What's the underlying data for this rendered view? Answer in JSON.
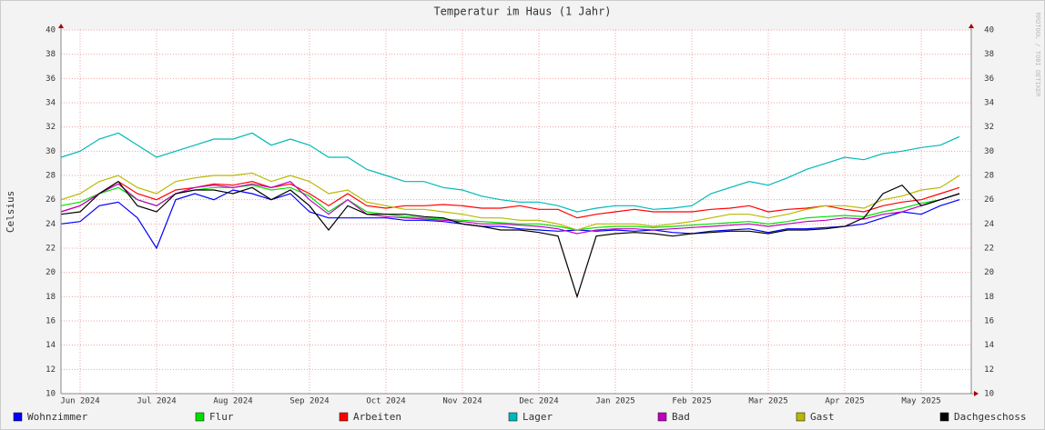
{
  "chart_data": {
    "type": "line",
    "title": "Temperatur im Haus (1 Jahr)",
    "y_label": "Celsius",
    "watermark": "RRDTOOL / TOBI OETIKER",
    "categories": [
      null,
      "Jun 2024",
      null,
      null,
      null,
      "Jul 2024",
      null,
      null,
      null,
      "Aug 2024",
      null,
      null,
      null,
      "Sep 2024",
      null,
      null,
      null,
      "Oct 2024",
      null,
      null,
      null,
      "Nov 2024",
      null,
      null,
      null,
      "Dec 2024",
      null,
      null,
      null,
      "Jan 2025",
      null,
      null,
      null,
      "Feb 2025",
      null,
      null,
      null,
      "Mar 2025",
      null,
      null,
      null,
      "Apr 2025",
      null,
      null,
      null,
      "May 2025",
      null,
      null
    ],
    "ylim": [
      10,
      40
    ],
    "yticks": [
      10,
      12,
      14,
      16,
      18,
      20,
      22,
      24,
      26,
      28,
      30,
      32,
      34,
      36,
      38,
      40
    ],
    "grid": true,
    "legend": "bottom",
    "series": [
      {
        "name": "Wohnzimmer",
        "color": "#0000ff",
        "values": [
          24,
          24.2,
          25.5,
          25.8,
          24.5,
          22,
          26,
          26.5,
          26,
          26.8,
          26.5,
          26,
          26.5,
          25,
          24.5,
          24.5,
          24.5,
          24.5,
          24.3,
          24.3,
          24.2,
          24,
          23.8,
          23.8,
          23.6,
          23.5,
          23.4,
          23.5,
          23.4,
          23.5,
          23.4,
          23.5,
          23.3,
          23.2,
          23.4,
          23.5,
          23.6,
          23.3,
          23.6,
          23.6,
          23.7,
          23.8,
          24,
          24.5,
          25,
          24.8,
          25.5,
          26
        ]
      },
      {
        "name": "Flur",
        "color": "#00e000",
        "values": [
          25.5,
          25.8,
          26.5,
          27,
          26,
          25.5,
          26.5,
          26.8,
          27,
          27,
          27.2,
          26.8,
          27,
          26.3,
          25,
          26,
          25,
          24.8,
          24.6,
          24.5,
          24.4,
          24.3,
          24.2,
          24.1,
          24,
          24,
          23.8,
          23.5,
          23.7,
          23.8,
          23.8,
          23.7,
          23.8,
          23.9,
          24,
          24.1,
          24.2,
          24,
          24.2,
          24.5,
          24.6,
          24.7,
          24.6,
          25,
          25.3,
          25.7,
          26,
          26.5
        ]
      },
      {
        "name": "Arbeiten",
        "color": "#ff0000",
        "values": [
          25,
          25.5,
          26.5,
          27.5,
          26.5,
          26,
          26.8,
          27,
          27.3,
          27.2,
          27.5,
          27,
          27.3,
          26.5,
          25.5,
          26.5,
          25.5,
          25.3,
          25.5,
          25.5,
          25.6,
          25.5,
          25.3,
          25.3,
          25.5,
          25.2,
          25.2,
          24.5,
          24.8,
          25,
          25.2,
          25,
          25,
          25,
          25.2,
          25.3,
          25.5,
          25,
          25.2,
          25.3,
          25.5,
          25.2,
          25,
          25.5,
          25.8,
          26,
          26.5,
          27
        ]
      },
      {
        "name": "Lager",
        "color": "#00b8b8",
        "values": [
          29.5,
          30,
          31,
          31.5,
          30.5,
          29.5,
          30,
          30.5,
          31,
          31,
          31.5,
          30.5,
          31,
          30.5,
          29.5,
          29.5,
          28.5,
          28,
          27.5,
          27.5,
          27,
          26.8,
          26.3,
          26,
          25.8,
          25.8,
          25.5,
          25,
          25.3,
          25.5,
          25.5,
          25.2,
          25.3,
          25.5,
          26.5,
          27,
          27.5,
          27.2,
          27.8,
          28.5,
          29,
          29.5,
          29.3,
          29.8,
          30,
          30.3,
          30.5,
          31.2
        ]
      },
      {
        "name": "Bad",
        "color": "#c000c0",
        "values": [
          25,
          25.5,
          26.5,
          27.3,
          26,
          25.5,
          26.5,
          27,
          27.2,
          27,
          27.3,
          27,
          27.5,
          26,
          24.8,
          26,
          24.8,
          24.6,
          24.5,
          24.4,
          24.3,
          24.2,
          24,
          24,
          23.9,
          23.8,
          23.6,
          23.2,
          23.5,
          23.6,
          23.6,
          23.5,
          23.6,
          23.7,
          23.8,
          23.9,
          24,
          23.8,
          24,
          24.2,
          24.3,
          24.5,
          24.4,
          24.8,
          25,
          25.5,
          26,
          26.5
        ]
      },
      {
        "name": "Gast",
        "color": "#b8b800",
        "values": [
          26,
          26.5,
          27.5,
          28,
          27,
          26.5,
          27.5,
          27.8,
          28,
          28,
          28.2,
          27.5,
          28,
          27.5,
          26.5,
          26.8,
          25.8,
          25.5,
          25.2,
          25.2,
          25,
          24.8,
          24.5,
          24.5,
          24.3,
          24.3,
          24,
          23.5,
          24,
          24,
          24,
          23.8,
          24,
          24.2,
          24.5,
          24.8,
          24.8,
          24.5,
          24.8,
          25.2,
          25.5,
          25.5,
          25.3,
          26,
          26.3,
          26.8,
          27,
          28
        ]
      },
      {
        "name": "Dachgeschoss",
        "color": "#000000",
        "values": [
          24.8,
          25,
          26.5,
          27.5,
          25.5,
          25,
          26.5,
          26.8,
          26.8,
          26.5,
          27,
          26,
          26.8,
          25.5,
          23.5,
          25.5,
          24.8,
          24.8,
          24.8,
          24.6,
          24.5,
          24,
          23.8,
          23.5,
          23.5,
          23.3,
          23,
          18,
          23,
          23.2,
          23.3,
          23.2,
          23,
          23.2,
          23.3,
          23.4,
          23.4,
          23.2,
          23.5,
          23.5,
          23.6,
          23.8,
          24.5,
          26.5,
          27.2,
          25.5,
          26,
          26.5
        ]
      }
    ]
  }
}
